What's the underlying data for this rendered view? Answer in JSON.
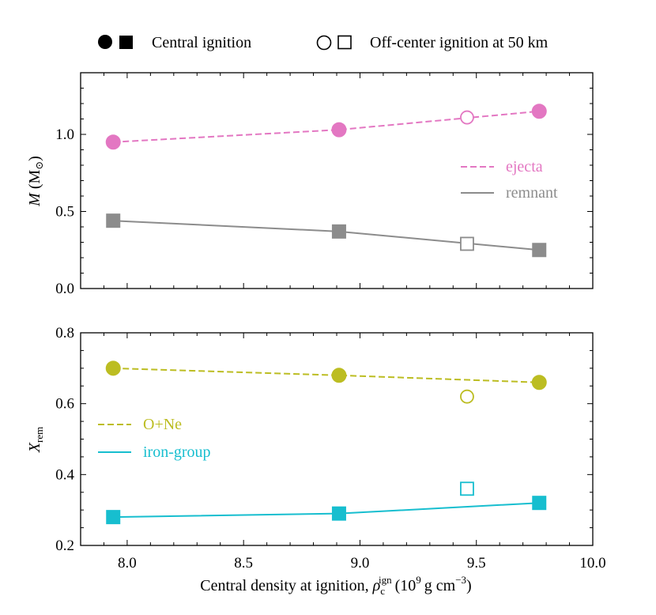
{
  "chart_data": {
    "type": "line",
    "shared_x_axis": {
      "xlabel_main": "Central density at ignition, ",
      "xlabel_symbol": "ρ",
      "xlabel_sub": "c",
      "xlabel_sup": "ign",
      "xlabel_unit_open": "(10",
      "xlabel_unit_exp": "9",
      "xlabel_unit_mid": "g cm",
      "xlabel_unit_exp2": "−3",
      "xlabel_unit_close": ")",
      "xlim": [
        7.8,
        10.0
      ],
      "xticks": [
        8.0,
        8.5,
        9.0,
        9.5,
        10.0
      ],
      "xtick_labels": [
        "8.0",
        "8.5",
        "9.0",
        "9.5",
        "10.0"
      ]
    },
    "top_legend": {
      "central": "Central ignition",
      "offcenter": "Off-center ignition at 50 km"
    },
    "panels": [
      {
        "id": "mass",
        "ylabel_var": "M",
        "ylabel_unit": "(M",
        "ylabel_sun": "⊙",
        "ylabel_close": ")",
        "ylim": [
          0.0,
          1.4
        ],
        "yticks": [
          0.0,
          0.5,
          1.0
        ],
        "ytick_labels": [
          "0.0",
          "0.5",
          "1.0"
        ],
        "legend_position": "center-right",
        "series": [
          {
            "name": "ejecta",
            "color": "#e377c2",
            "line": "dashed",
            "marker": "circle",
            "x": [
              7.94,
              8.91,
              9.77
            ],
            "y": [
              0.95,
              1.03,
              1.15
            ],
            "offcenter_x": [
              9.46
            ],
            "offcenter_y": [
              1.11
            ]
          },
          {
            "name": "remnant",
            "color": "#8c8c8c",
            "line": "solid",
            "marker": "square",
            "x": [
              7.94,
              8.91,
              9.77
            ],
            "y": [
              0.44,
              0.37,
              0.25
            ],
            "offcenter_x": [
              9.46
            ],
            "offcenter_y": [
              0.29
            ]
          }
        ]
      },
      {
        "id": "xrem",
        "ylabel_var": "X",
        "ylabel_sub": "rem",
        "ylim": [
          0.2,
          0.8
        ],
        "yticks": [
          0.2,
          0.4,
          0.6,
          0.8
        ],
        "ytick_labels": [
          "0.2",
          "0.4",
          "0.6",
          "0.8"
        ],
        "legend_position": "center-left",
        "series": [
          {
            "name": "O+Ne",
            "color": "#bcbd22",
            "line": "dashed",
            "marker": "circle",
            "x": [
              7.94,
              8.91,
              9.77
            ],
            "y": [
              0.7,
              0.68,
              0.66
            ],
            "offcenter_x": [
              9.46
            ],
            "offcenter_y": [
              0.62
            ]
          },
          {
            "name": "iron-group",
            "color": "#17becf",
            "line": "solid",
            "marker": "square",
            "x": [
              7.94,
              8.91,
              9.77
            ],
            "y": [
              0.28,
              0.29,
              0.32
            ],
            "offcenter_x": [
              9.46
            ],
            "offcenter_y": [
              0.36
            ]
          }
        ]
      }
    ]
  }
}
